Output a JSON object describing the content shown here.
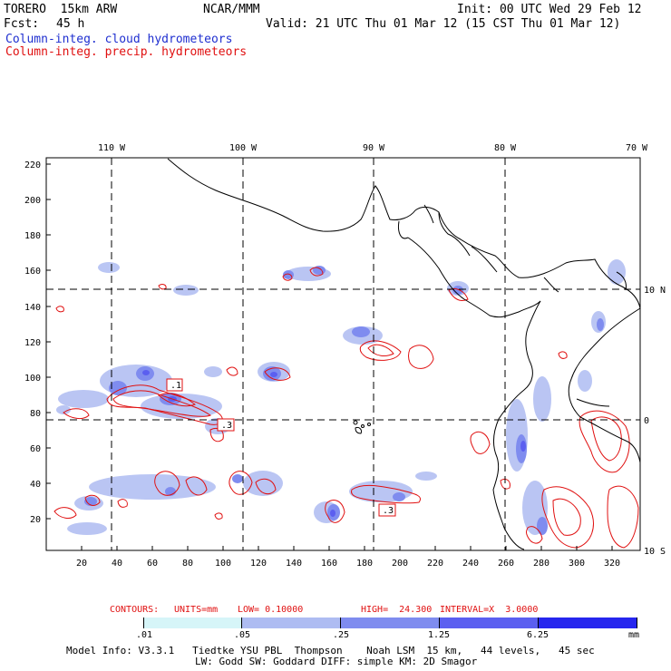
{
  "header": {
    "model": "TORERO  15km ARW",
    "org": "NCAR/MMM",
    "init": "Init: 00 UTC Wed 29 Feb 12",
    "fcst_label": "Fcst:",
    "fcst_hours": "45 h",
    "valid": "Valid: 21 UTC Thu 01 Mar 12 (15 CST Thu 01 Mar 12)",
    "legend_cloud": "Column-integ. cloud hydrometeors",
    "legend_precip": "Column-integ. precip. hydrometeors"
  },
  "map": {
    "lon_labels": [
      "110 W",
      "100 W",
      "90 W",
      "80 W",
      "70 W"
    ],
    "lat_labels": [
      "10 N",
      "0",
      "10 S"
    ],
    "y_ticks": [
      "220",
      "200",
      "180",
      "160",
      "140",
      "120",
      "100",
      "80",
      "60",
      "40",
      "20"
    ],
    "x_ticks": [
      "20",
      "40",
      "60",
      "80",
      "100",
      "120",
      "140",
      "160",
      "180",
      "200",
      "220",
      "240",
      "260",
      "280",
      "300",
      "320"
    ],
    "box_labels": [
      ".1",
      ".3",
      ".3"
    ]
  },
  "contour_info": {
    "prefix": "CONTOURS:",
    "units": "UNITS=mm",
    "low": "LOW= 0.10000",
    "high": "HIGH=  24.300",
    "interval": "INTERVAL=X  3.0000"
  },
  "colorbar": {
    "labels": [
      ".01",
      ".05",
      ".25",
      "1.25",
      "6.25"
    ],
    "unit": "mm",
    "colors": [
      "#ffffff",
      "#d6f5f8",
      "#aebcf2",
      "#7f8cef",
      "#5b5ff0",
      "#2626ee"
    ]
  },
  "footer": {
    "line1": "Model Info: V3.3.1   Tiedtke YSU PBL  Thompson    Noah LSM  15 km,   44 levels,   45 sec",
    "line2": "LW: Godd SW: Goddard DIFF: simple KM: 2D Smagor"
  }
}
